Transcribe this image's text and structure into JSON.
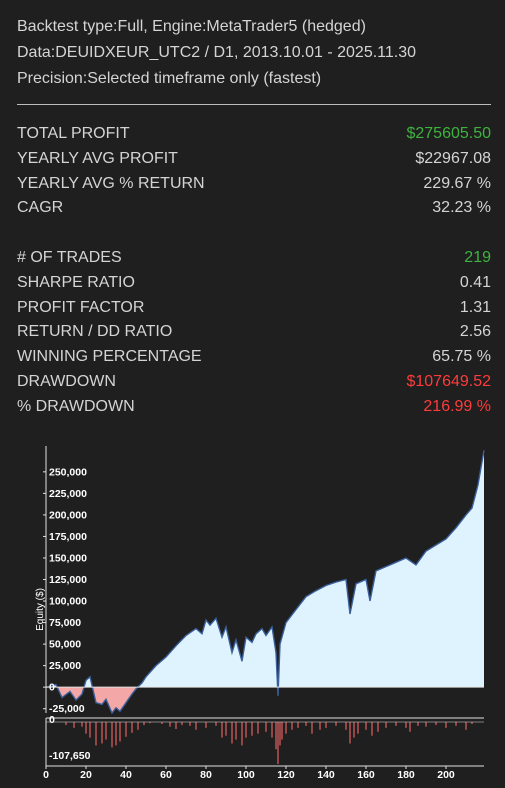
{
  "header": {
    "backtest": "Backtest type:Full, Engine:MetaTrader5 (hedged)",
    "data": "Data:DEUIDXEUR_UTC2 / D1, 2013.10.01 - 2025.11.30",
    "precision": "Precision:Selected timeframe only (fastest)"
  },
  "stats_group1": [
    {
      "label": "TOTAL PROFIT",
      "value": "$275605.50",
      "color": "green"
    },
    {
      "label": "YEARLY AVG PROFIT",
      "value": "$22967.08",
      "color": "normal"
    },
    {
      "label": "YEARLY AVG % RETURN",
      "value": "229.67 %",
      "color": "normal"
    },
    {
      "label": "CAGR",
      "value": "32.23 %",
      "color": "normal"
    }
  ],
  "stats_group2": [
    {
      "label": "# OF TRADES",
      "value": "219",
      "color": "green"
    },
    {
      "label": "SHARPE RATIO",
      "value": "0.41",
      "color": "normal"
    },
    {
      "label": "PROFIT FACTOR",
      "value": "1.31",
      "color": "normal"
    },
    {
      "label": "RETURN / DD RATIO",
      "value": "2.56",
      "color": "normal"
    },
    {
      "label": "WINNING PERCENTAGE",
      "value": "65.75 %",
      "color": "normal"
    },
    {
      "label": "DRAWDOWN",
      "value": "$107649.52",
      "color": "red"
    },
    {
      "label": "% DRAWDOWN",
      "value": "216.99 %",
      "color": "red"
    }
  ],
  "colors": {
    "background": "#1f1f1f",
    "text": "#d4d4d4",
    "positive": "#3fb33f",
    "negative": "#ff3b3b",
    "equity_fill_positive": "#dff3ff",
    "equity_fill_negative": "#f4a7a7",
    "equity_line": "#3a5f9a",
    "drawdown_bar": "#e06060"
  },
  "chart_data": {
    "type": "area",
    "ylabel": "Equity ($)",
    "xlim": [
      0,
      219
    ],
    "ylim": [
      -30000,
      280000
    ],
    "yticks": [
      -25000,
      0,
      25000,
      50000,
      75000,
      100000,
      125000,
      150000,
      175000,
      200000,
      225000,
      250000
    ],
    "ytick_labels": [
      "-25,000",
      "0",
      "25,000",
      "50,000",
      "75,000",
      "100,000",
      "125,000",
      "150,000",
      "175,000",
      "200,000",
      "225,000",
      "250,000"
    ],
    "xticks": [
      0,
      20,
      40,
      60,
      80,
      100,
      120,
      140,
      160,
      180,
      200
    ],
    "xtick_labels": [
      "0",
      "20",
      "40",
      "60",
      "80",
      "100",
      "120",
      "140",
      "160",
      "180",
      "200"
    ],
    "equity": {
      "x": [
        0,
        5,
        8,
        12,
        15,
        18,
        20,
        22,
        25,
        28,
        30,
        33,
        35,
        37,
        40,
        43,
        45,
        48,
        50,
        55,
        60,
        65,
        70,
        75,
        78,
        80,
        82,
        85,
        88,
        90,
        93,
        95,
        98,
        100,
        103,
        105,
        108,
        110,
        113,
        115,
        116,
        117,
        120,
        125,
        130,
        135,
        140,
        145,
        150,
        152,
        155,
        160,
        162,
        165,
        170,
        175,
        180,
        185,
        190,
        195,
        200,
        205,
        210,
        213,
        216,
        219
      ],
      "y": [
        0,
        3000,
        -12000,
        -5000,
        -15000,
        -8000,
        8000,
        12000,
        -18000,
        -20000,
        -14000,
        -30000,
        -24000,
        -28000,
        -18000,
        -8000,
        -2000,
        5000,
        12000,
        25000,
        35000,
        48000,
        60000,
        68000,
        62000,
        78000,
        72000,
        80000,
        58000,
        70000,
        40000,
        55000,
        30000,
        58000,
        52000,
        62000,
        68000,
        60000,
        70000,
        40000,
        -10000,
        50000,
        75000,
        90000,
        105000,
        112000,
        118000,
        122000,
        125000,
        85000,
        120000,
        125000,
        100000,
        135000,
        140000,
        145000,
        150000,
        142000,
        158000,
        165000,
        172000,
        185000,
        200000,
        208000,
        235000,
        275000
      ]
    },
    "drawdown": {
      "ylim": [
        -107650,
        0
      ],
      "yticks": [
        0,
        -107650
      ],
      "ytick_labels": [
        "0",
        "-107,650"
      ],
      "x": [
        10,
        14,
        18,
        20,
        22,
        25,
        28,
        30,
        33,
        35,
        37,
        40,
        43,
        46,
        49,
        52,
        58,
        62,
        65,
        68,
        72,
        75,
        80,
        85,
        88,
        90,
        93,
        95,
        98,
        100,
        103,
        106,
        110,
        113,
        115,
        116,
        117,
        118,
        120,
        123,
        126,
        130,
        133,
        137,
        140,
        145,
        150,
        152,
        154,
        156,
        160,
        163,
        166,
        170,
        175,
        180,
        182,
        186,
        190,
        195,
        200,
        205,
        210,
        213
      ],
      "y": [
        -8000,
        -15000,
        -12000,
        -30000,
        -40000,
        -60000,
        -55000,
        -45000,
        -65000,
        -60000,
        -50000,
        -38000,
        -28000,
        -20000,
        -8000,
        -3000,
        -5000,
        -12000,
        -18000,
        -8000,
        -10000,
        -20000,
        -15000,
        -10000,
        -40000,
        -35000,
        -55000,
        -45000,
        -60000,
        -40000,
        -35000,
        -30000,
        -25000,
        -40000,
        -70000,
        -107650,
        -60000,
        -45000,
        -30000,
        -20000,
        -15000,
        -10000,
        -30000,
        -20000,
        -15000,
        -10000,
        -20000,
        -55000,
        -40000,
        -30000,
        -20000,
        -35000,
        -25000,
        -15000,
        -10000,
        -15000,
        -25000,
        -10000,
        -12000,
        -8000,
        -15000,
        -10000,
        -20000,
        -5000
      ]
    }
  }
}
